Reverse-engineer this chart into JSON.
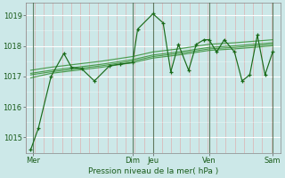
{
  "title": "",
  "xlabel": "Pression niveau de la mer( hPa )",
  "bg_color": "#cce8e8",
  "grid_color_white": "#ffffff",
  "grid_color_pink": "#ddb0b0",
  "line_color_dark": "#1a6b1a",
  "line_color_mid": "#2d8b2d",
  "ylim": [
    1014.5,
    1019.4
  ],
  "xlim": [
    0,
    100
  ],
  "xtick_labels": [
    "Mer",
    "Dim",
    "Jeu",
    "Ven",
    "Sam"
  ],
  "xtick_positions": [
    3,
    42,
    50,
    72,
    97
  ],
  "ytick_values": [
    1015,
    1016,
    1017,
    1018,
    1019
  ],
  "day_vlines": [
    3,
    42,
    50,
    72,
    97
  ],
  "series_main": [
    [
      2,
      1014.6
    ],
    [
      5,
      1015.3
    ],
    [
      10,
      1017.0
    ],
    [
      15,
      1017.75
    ],
    [
      18,
      1017.3
    ],
    [
      22,
      1017.25
    ],
    [
      27,
      1016.85
    ],
    [
      33,
      1017.35
    ],
    [
      37,
      1017.4
    ],
    [
      42,
      1017.45
    ],
    [
      44,
      1018.55
    ],
    [
      50,
      1019.05
    ],
    [
      54,
      1018.75
    ],
    [
      57,
      1017.15
    ],
    [
      60,
      1018.05
    ],
    [
      64,
      1017.2
    ],
    [
      67,
      1018.05
    ],
    [
      70,
      1018.2
    ],
    [
      72,
      1018.2
    ],
    [
      75,
      1017.8
    ],
    [
      78,
      1018.2
    ],
    [
      82,
      1017.8
    ],
    [
      85,
      1016.85
    ],
    [
      88,
      1017.05
    ],
    [
      91,
      1018.35
    ],
    [
      94,
      1017.05
    ],
    [
      97,
      1017.8
    ]
  ],
  "series_smooth1": [
    [
      2,
      1016.95
    ],
    [
      10,
      1017.1
    ],
    [
      20,
      1017.2
    ],
    [
      30,
      1017.3
    ],
    [
      42,
      1017.45
    ],
    [
      50,
      1017.6
    ],
    [
      60,
      1017.7
    ],
    [
      72,
      1017.85
    ],
    [
      82,
      1017.9
    ],
    [
      97,
      1018.0
    ]
  ],
  "series_smooth2": [
    [
      2,
      1017.05
    ],
    [
      10,
      1017.15
    ],
    [
      20,
      1017.25
    ],
    [
      30,
      1017.35
    ],
    [
      42,
      1017.5
    ],
    [
      50,
      1017.65
    ],
    [
      60,
      1017.75
    ],
    [
      72,
      1017.9
    ],
    [
      82,
      1017.95
    ],
    [
      97,
      1018.05
    ]
  ],
  "series_smooth3": [
    [
      2,
      1017.1
    ],
    [
      10,
      1017.2
    ],
    [
      20,
      1017.3
    ],
    [
      30,
      1017.4
    ],
    [
      42,
      1017.55
    ],
    [
      50,
      1017.7
    ],
    [
      60,
      1017.8
    ],
    [
      72,
      1017.95
    ],
    [
      82,
      1018.0
    ],
    [
      97,
      1018.1
    ]
  ],
  "series_smooth4": [
    [
      2,
      1017.2
    ],
    [
      10,
      1017.3
    ],
    [
      20,
      1017.4
    ],
    [
      30,
      1017.5
    ],
    [
      42,
      1017.65
    ],
    [
      50,
      1017.8
    ],
    [
      60,
      1017.9
    ],
    [
      72,
      1018.05
    ],
    [
      82,
      1018.1
    ],
    [
      97,
      1018.2
    ]
  ]
}
